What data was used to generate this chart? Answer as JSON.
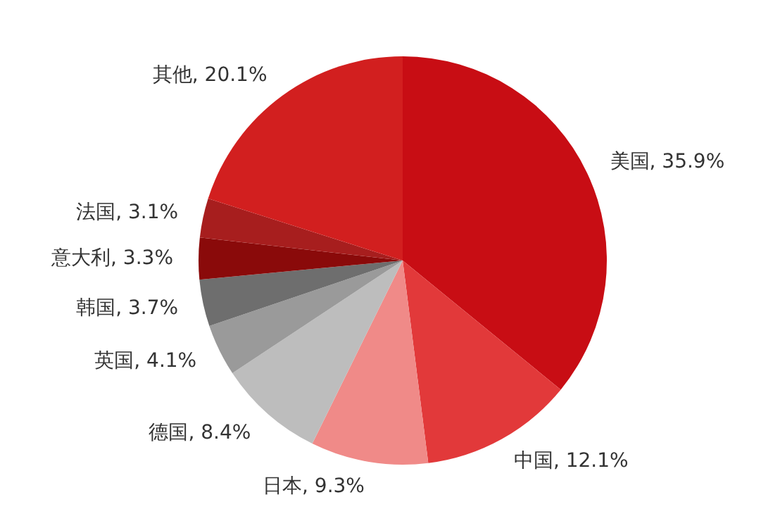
{
  "chart_data": {
    "type": "pie",
    "categories": [
      "美国",
      "中国",
      "日本",
      "德国",
      "英国",
      "韩国",
      "意大利",
      "法国",
      "其他"
    ],
    "values": [
      35.9,
      12.1,
      9.3,
      8.4,
      4.1,
      3.7,
      3.3,
      3.1,
      20.1
    ],
    "value_labels": [
      "35.9%",
      "12.1%",
      "9.3%",
      "8.4%",
      "4.1%",
      "3.7%",
      "3.3%",
      "3.1%",
      "20.1%"
    ],
    "colors": [
      "#c80d14",
      "#e2393a",
      "#f08a88",
      "#bdbdbd",
      "#9a9a9a",
      "#6e6e6e",
      "#8a0a0a",
      "#a71e1e",
      "#d21f1f"
    ],
    "legend": false
  }
}
